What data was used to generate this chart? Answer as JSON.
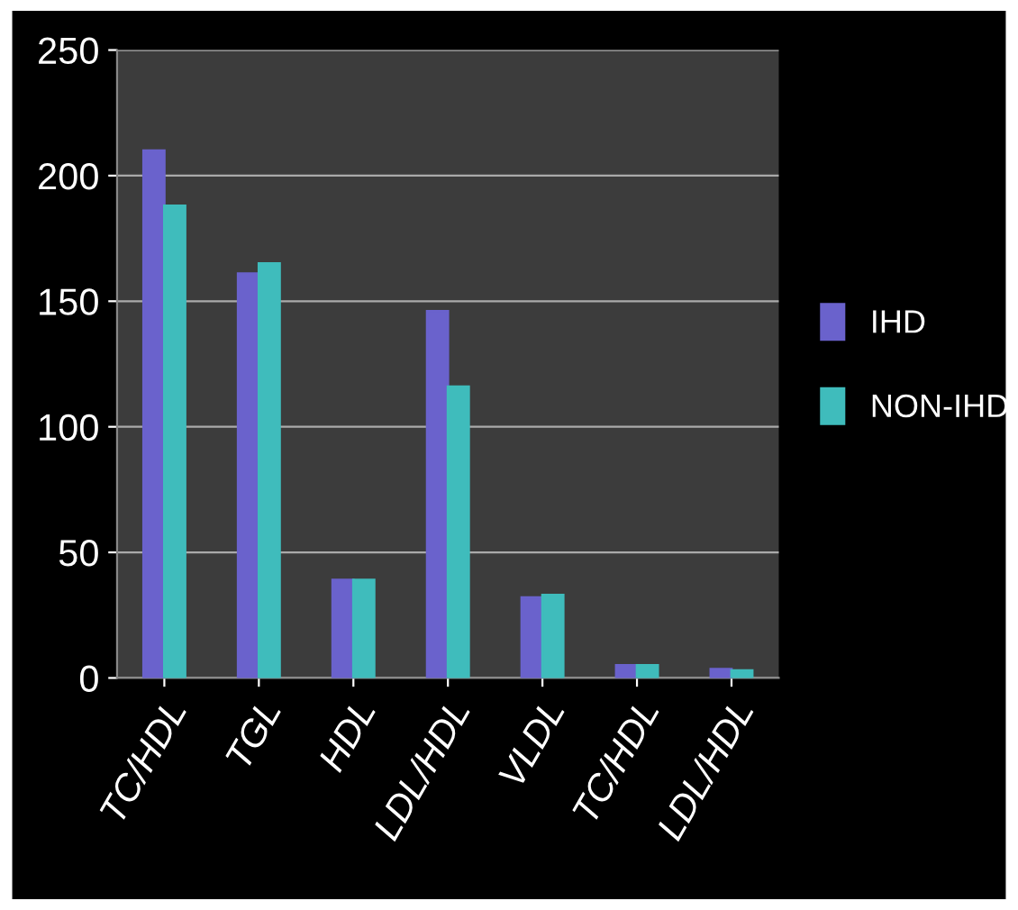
{
  "chart_data": {
    "type": "bar",
    "categories": [
      "TC/HDL",
      "TGL",
      "HDL",
      "LDL/HDL",
      "VLDL",
      "TC/HDL",
      "LDL/HDL"
    ],
    "series": [
      {
        "name": "IHD",
        "color": "#6a62cc",
        "values": [
          210,
          161,
          39,
          146,
          32,
          5,
          3.5
        ]
      },
      {
        "name": "NON-IHD",
        "color": "#3fbcbc",
        "values": [
          188,
          165,
          39,
          116,
          33,
          5,
          3
        ]
      }
    ],
    "ylim": [
      0,
      250
    ],
    "yticks": [
      0,
      50,
      100,
      150,
      200,
      250
    ],
    "grid": "y",
    "legend": "right"
  }
}
